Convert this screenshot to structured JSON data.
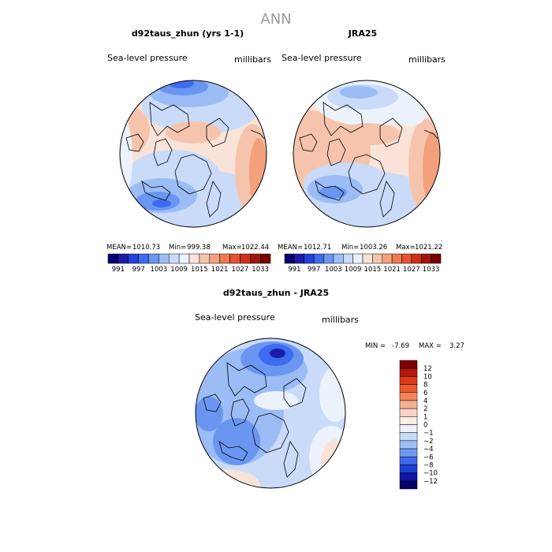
{
  "figure_title": "ANN",
  "panels": [
    {
      "title": "d92taus_zhun (yrs 1-1)",
      "variable": "Sea-level pressure",
      "units": "millibars",
      "stats": {
        "mean_label": "MEAN=",
        "mean": "1010.73",
        "min_label": "Min=",
        "min": "999.38",
        "max_label": "Max=",
        "max": "1022.44"
      }
    },
    {
      "title": "JRA25",
      "variable": "Sea-level pressure",
      "units": "millibars",
      "stats": {
        "mean_label": "MEAN=",
        "mean": "1012.71",
        "min_label": "Min=",
        "min": "1003.26",
        "max_label": "Max=",
        "max": "1021.22"
      }
    },
    {
      "title": "d92taus_zhun - JRA25",
      "variable": "Sea-level pressure",
      "units": "millibars",
      "stats": {
        "min_label": "MIN =",
        "min": "-7.69",
        "max_label": "MAX =",
        "max": "3.27"
      }
    }
  ],
  "colorbar_horizontal": {
    "labels": [
      "991",
      "997",
      "1003",
      "1009",
      "1015",
      "1021",
      "1027",
      "1033"
    ],
    "colors": [
      "#08006e",
      "#1c1ca8",
      "#2541d9",
      "#3d6cf0",
      "#6a96f2",
      "#9bbcf5",
      "#c9dbf8",
      "#ecf2fb",
      "#f9e3d9",
      "#f6c4ad",
      "#f3a07d",
      "#ee7a52",
      "#e45432",
      "#cc3217",
      "#a0170a",
      "#760000"
    ]
  },
  "colorbar_vertical": {
    "labels": [
      "12",
      "10",
      "8",
      "6",
      "4",
      "2",
      "1",
      "0",
      "−1",
      "−2",
      "−4",
      "−6",
      "−8",
      "−10",
      "−12"
    ],
    "colors": [
      "#7a0000",
      "#b01a0a",
      "#dd3a16",
      "#ee5a2e",
      "#f38558",
      "#f5b093",
      "#f8d2c2",
      "#fbeee6",
      "#eaf1fb",
      "#c9dcf7",
      "#9ebef5",
      "#6f98f0",
      "#3e68ea",
      "#1e3fd6",
      "#0d17a8",
      "#03006a"
    ]
  }
}
